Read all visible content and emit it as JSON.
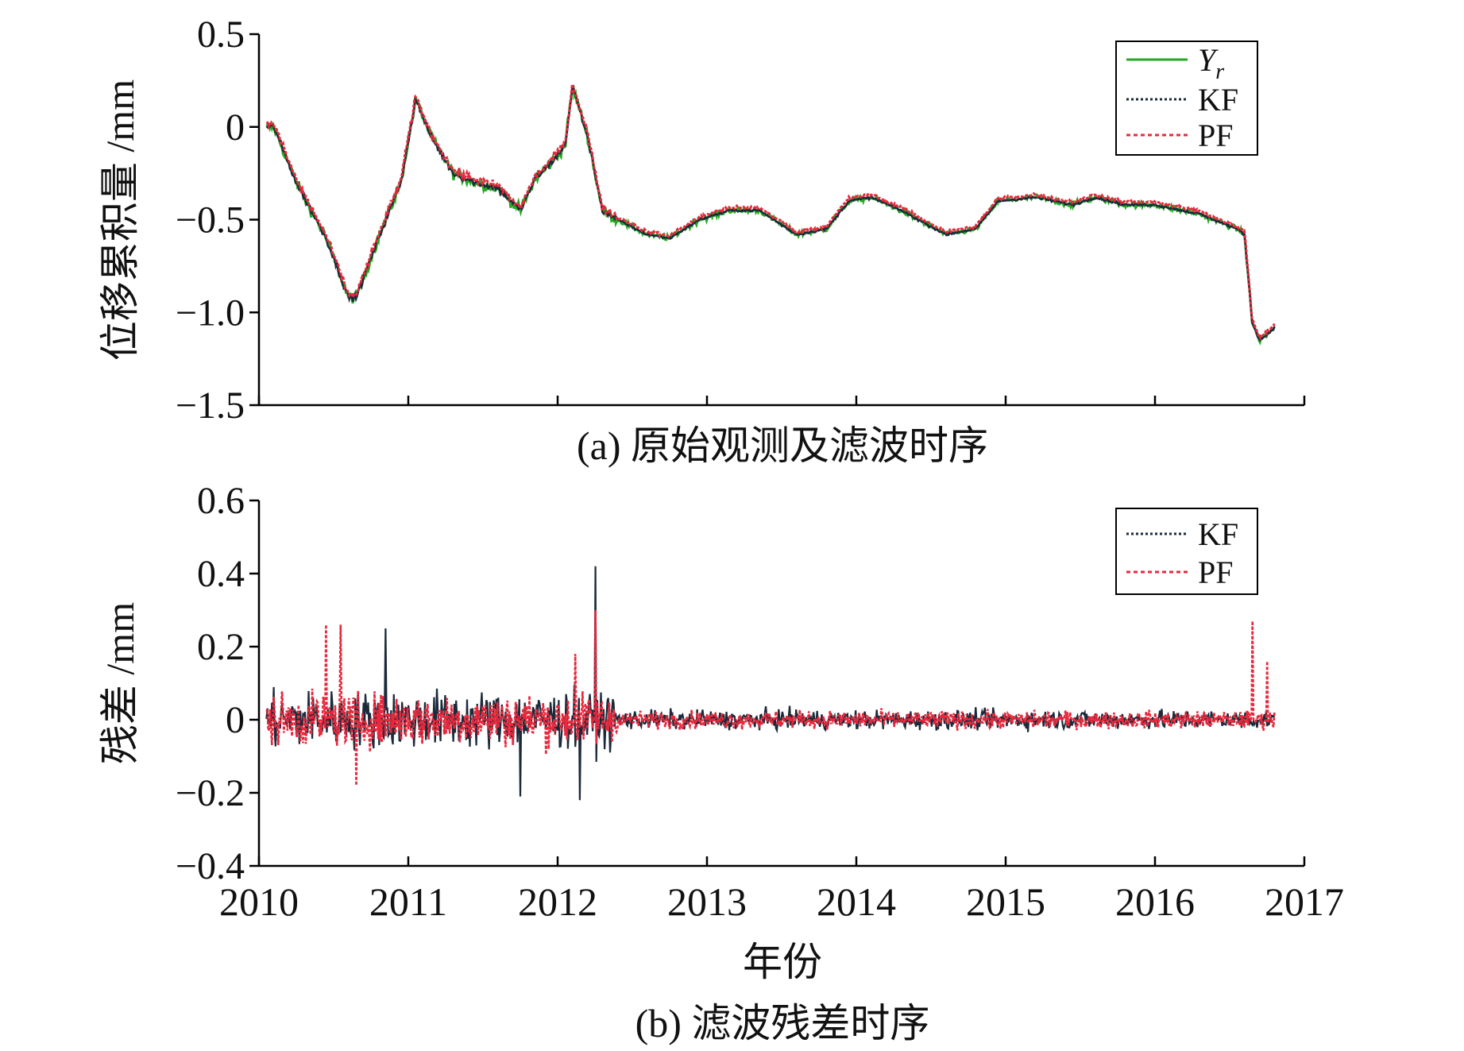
{
  "chart_data": [
    {
      "id": "a",
      "type": "line",
      "caption": "(a) 原始观测及滤波时序",
      "ylabel": "位移累积量 /mm",
      "xlim": [
        2010,
        2017
      ],
      "ylim": [
        -1.5,
        0.5
      ],
      "yticks": [
        "0.5",
        "0",
        "−0.5",
        "−1.0",
        "−1.5"
      ],
      "ytick_values": [
        0.5,
        0,
        -0.5,
        -1.0,
        -1.5
      ],
      "legend_position": "top-right",
      "grid": false,
      "series_colors": {
        "Yr": "#22aa22",
        "KF": "#1a2a3a",
        "PF": "#e8283c"
      },
      "legend": [
        {
          "key": "Yr",
          "label": "Y",
          "sub": "r",
          "style": "solid"
        },
        {
          "key": "KF",
          "label": "KF",
          "style": "dotted"
        },
        {
          "key": "PF",
          "label": "PF",
          "style": "dashed"
        }
      ],
      "anchors": {
        "x": [
          2010.05,
          2010.1,
          2010.25,
          2010.45,
          2010.6,
          2010.65,
          2010.8,
          2010.95,
          2011.05,
          2011.15,
          2011.3,
          2011.45,
          2011.6,
          2011.75,
          2011.85,
          2011.95,
          2012.05,
          2012.1,
          2012.2,
          2012.3,
          2012.4,
          2012.6,
          2012.75,
          2012.95,
          2013.15,
          2013.35,
          2013.6,
          2013.8,
          2013.95,
          2014.1,
          2014.3,
          2014.6,
          2014.8,
          2014.95,
          2015.2,
          2015.45,
          2015.6,
          2015.8,
          2016.0,
          2016.3,
          2016.55,
          2016.6,
          2016.65,
          2016.7,
          2016.75,
          2016.8
        ],
        "y": [
          0.0,
          0.0,
          -0.3,
          -0.6,
          -0.92,
          -0.92,
          -0.6,
          -0.3,
          0.15,
          -0.05,
          -0.25,
          -0.3,
          -0.33,
          -0.45,
          -0.28,
          -0.2,
          -0.1,
          0.22,
          -0.05,
          -0.45,
          -0.5,
          -0.58,
          -0.6,
          -0.5,
          -0.45,
          -0.45,
          -0.58,
          -0.55,
          -0.4,
          -0.38,
          -0.45,
          -0.58,
          -0.55,
          -0.4,
          -0.38,
          -0.42,
          -0.38,
          -0.42,
          -0.42,
          -0.47,
          -0.55,
          -0.58,
          -1.05,
          -1.15,
          -1.12,
          -1.08
        ]
      }
    },
    {
      "id": "b",
      "type": "line",
      "caption": "(b) 滤波残差时序",
      "ylabel": "残差 /mm",
      "xlabel": "年份",
      "xlim": [
        2010,
        2017
      ],
      "ylim": [
        -0.4,
        0.6
      ],
      "xticks": [
        "2010",
        "2011",
        "2012",
        "2013",
        "2014",
        "2015",
        "2016",
        "2017"
      ],
      "xtick_values": [
        2010,
        2011,
        2012,
        2013,
        2014,
        2015,
        2016,
        2017
      ],
      "yticks": [
        "0.6",
        "0.4",
        "0.2",
        "0",
        "−0.2",
        "−0.4"
      ],
      "ytick_values": [
        0.6,
        0.4,
        0.2,
        0,
        -0.2,
        -0.4
      ],
      "legend_position": "top-right",
      "grid": false,
      "series_colors": {
        "KF": "#1a2a3a",
        "PF": "#e8283c"
      },
      "legend": [
        {
          "key": "KF",
          "label": "KF",
          "style": "dotted"
        },
        {
          "key": "PF",
          "label": "PF",
          "style": "dashed"
        }
      ],
      "noise_amplitude": [
        {
          "from": 2010.05,
          "to": 2012.4,
          "amp": 0.06
        },
        {
          "from": 2012.4,
          "to": 2016.8,
          "amp": 0.02
        }
      ],
      "spikes": [
        {
          "series": "KF",
          "x": 2012.25,
          "y": 0.42
        },
        {
          "series": "KF",
          "x": 2012.15,
          "y": -0.22
        },
        {
          "series": "KF",
          "x": 2011.75,
          "y": -0.21
        },
        {
          "series": "KF",
          "x": 2010.85,
          "y": 0.25
        },
        {
          "series": "PF",
          "x": 2010.45,
          "y": 0.26
        },
        {
          "series": "PF",
          "x": 2010.55,
          "y": 0.26
        },
        {
          "series": "PF",
          "x": 2012.25,
          "y": 0.3
        },
        {
          "series": "PF",
          "x": 2012.12,
          "y": 0.18
        },
        {
          "series": "PF",
          "x": 2010.65,
          "y": -0.18
        },
        {
          "series": "PF",
          "x": 2016.65,
          "y": 0.27
        },
        {
          "series": "PF",
          "x": 2016.75,
          "y": 0.16
        }
      ]
    }
  ]
}
